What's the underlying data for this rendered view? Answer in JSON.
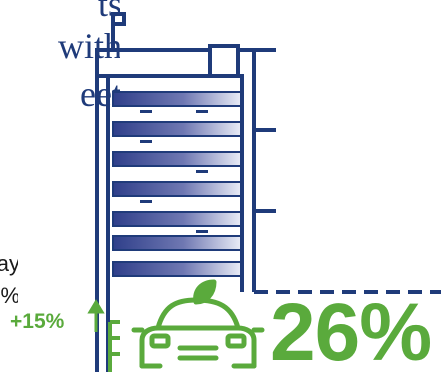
{
  "heading": {
    "lines": [
      "ts",
      "with",
      "eet"
    ],
    "color": "#1f3b7a"
  },
  "body_text": {
    "lines": [
      "ay",
      "%"
    ],
    "color": "#1a1a1a"
  },
  "stats": {
    "small_change": "+15%",
    "big_value": "26%",
    "accent_color": "#5aaa3c"
  },
  "illustration": {
    "building_icon": "office-building-icon",
    "car_icon": "eco-car-icon",
    "arrow_icon": "arrow-up-icon",
    "building_color": "#1f3b7a",
    "window_gradient_dark": "#2f3f8a",
    "window_gradient_light": "#e9ecf6"
  }
}
